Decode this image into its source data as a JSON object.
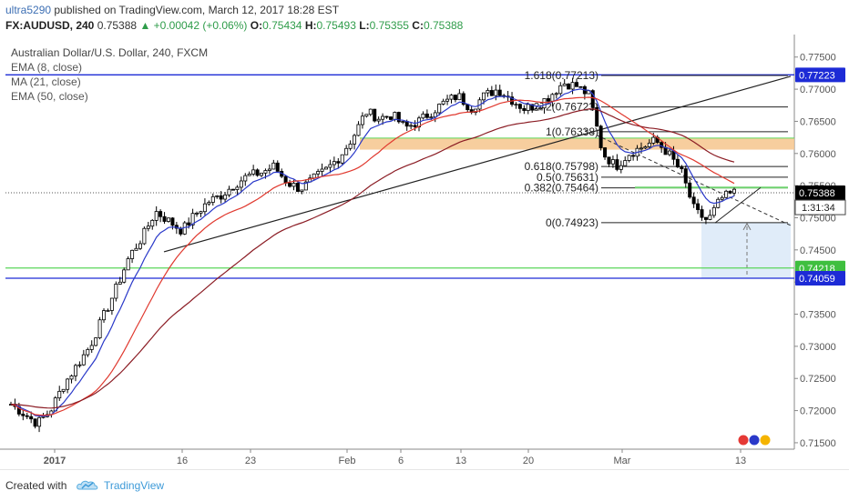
{
  "header": {
    "user": "ultra5290",
    "published_text": " published on TradingView.com, March 12, 2017 18:28 EST",
    "symbol": "FX:AUDUSD, 240",
    "last_price": "0.75388",
    "change": "▲ +0.00042 (+0.06%)",
    "o_label": "O:",
    "o_value": "0.75434",
    "h_label": "H:",
    "h_value": "0.75493",
    "l_label": "L:",
    "l_value": "0.75355",
    "c_label": "C:",
    "c_value": "0.75388"
  },
  "legend": {
    "title": "Australian Dollar/U.S. Dollar, 240, FXCM",
    "ema8": "EMA (8, close)",
    "ma21": "MA (21, close)",
    "ema50": "EMA (50, close)"
  },
  "footer": {
    "created_with": "Created with",
    "brand": "TradingView"
  },
  "colors": {
    "up_candle": "#ffffff",
    "down_candle": "#000000",
    "ema8": "#2a39c9",
    "ma21": "#e0392f",
    "ema50": "#8b1c24",
    "horizontal_blue": "#1d2bd6",
    "horizontal_green": "#5ad65a",
    "zone_orange": "#f6c58d",
    "projection_box": "#ddeaf8"
  },
  "chart_data": {
    "type": "candlestick",
    "title": "Australian Dollar/U.S. Dollar, 240, FXCM",
    "x_ticks": [
      "2017",
      "16",
      "23",
      "Feb",
      "6",
      "13",
      "20",
      "Mar",
      "13"
    ],
    "y_ticks": [
      "0.77500",
      "0.77000",
      "0.76500",
      "0.76000",
      "0.75500",
      "0.75000",
      "0.74500",
      "0.74000",
      "0.73500",
      "0.73000",
      "0.72500",
      "0.72000",
      "0.71500"
    ],
    "ylim": [
      0.714,
      0.7785
    ],
    "price_labels": [
      {
        "value": 0.77223,
        "text": "0.77223",
        "color": "#1d2bd6"
      },
      {
        "value": 0.75388,
        "text": "0.75388",
        "color": "#000000"
      },
      {
        "value": 0.74218,
        "text": "0.74218",
        "color": "#3fbf3f"
      },
      {
        "value": 0.74059,
        "text": "0.74059",
        "color": "#1d2bd6"
      }
    ],
    "countdown": "1:31:34",
    "fib_levels": [
      {
        "label": "1.618(0.77213)",
        "value": 0.77213
      },
      {
        "label": "1.272(0.76723)",
        "value": 0.76723
      },
      {
        "label": "1(0.76338)",
        "value": 0.76338
      },
      {
        "label": "0.618(0.75798)",
        "value": 0.75798
      },
      {
        "label": "0.5(0.75631)",
        "value": 0.75631
      },
      {
        "label": "0.382(0.75464)",
        "value": 0.75464
      },
      {
        "label": "0(0.74923)",
        "value": 0.74923
      }
    ],
    "resistance_zone": [
      0.7606,
      0.7624
    ],
    "price_series": [
      0.721,
      0.7195,
      0.718,
      0.72,
      0.724,
      0.727,
      0.73,
      0.7345,
      0.739,
      0.744,
      0.747,
      0.751,
      0.7495,
      0.748,
      0.7505,
      0.7525,
      0.7535,
      0.7552,
      0.7565,
      0.757,
      0.758,
      0.7555,
      0.7545,
      0.756,
      0.7575,
      0.7595,
      0.7625,
      0.7665,
      0.7655,
      0.766,
      0.764,
      0.765,
      0.7665,
      0.768,
      0.769,
      0.767,
      0.769,
      0.77,
      0.7685,
      0.767,
      0.7675,
      0.769,
      0.771,
      0.7705,
      0.769,
      0.76,
      0.758,
      0.76,
      0.761,
      0.762,
      0.76,
      0.757,
      0.751,
      0.7495,
      0.753,
      0.7539
    ],
    "series": [
      {
        "name": "EMA (8, close)",
        "color": "#2a39c9"
      },
      {
        "name": "MA (21, close)",
        "color": "#e0392f"
      },
      {
        "name": "EMA (50, close)",
        "color": "#8b1c24"
      }
    ]
  }
}
